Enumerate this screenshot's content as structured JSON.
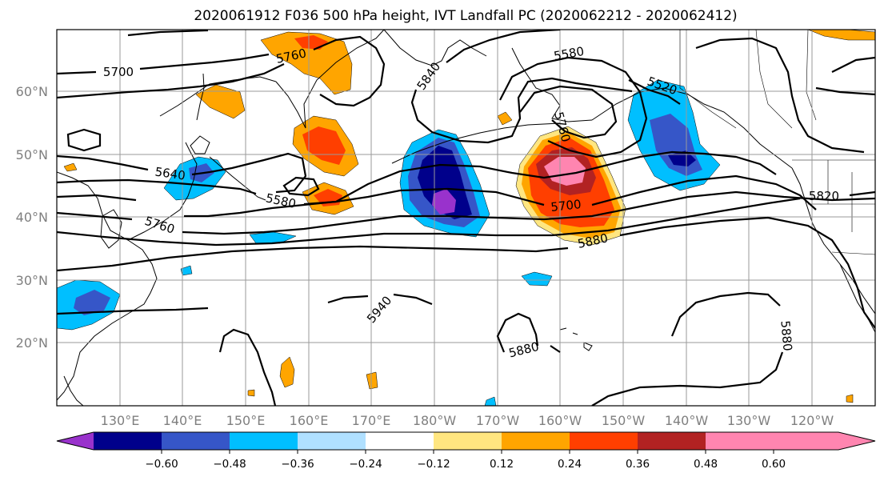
{
  "title": "2020061912 F036 500 hPa height, IVT Landfall PC (2020062212 - 2020062412)",
  "map": {
    "lat_labels": [
      "60°N",
      "50°N",
      "40°N",
      "30°N",
      "20°N"
    ],
    "lon_labels": [
      "130°E",
      "140°E",
      "150°E",
      "160°E",
      "170°E",
      "180°W",
      "170°W",
      "160°W",
      "150°W",
      "140°W",
      "130°W",
      "120°W"
    ],
    "contour_labels": [
      "5700",
      "5760",
      "5840",
      "5580",
      "5520",
      "5640",
      "5580",
      "5760",
      "5700",
      "5820",
      "5880",
      "5940",
      "5880",
      "5880",
      "5760"
    ]
  },
  "colorbar": {
    "tick_labels": [
      "−0.60",
      "−0.48",
      "−0.36",
      "−0.24",
      "−0.12",
      "0.12",
      "0.24",
      "0.36",
      "0.48",
      "0.60"
    ],
    "colors": [
      "#9932cc",
      "#00008b",
      "#3656c8",
      "#00bfff",
      "#b0e0ff",
      "#ffffff",
      "#ffe680",
      "#ffa500",
      "#ff3f00",
      "#b22222",
      "#ff85b0"
    ]
  }
}
